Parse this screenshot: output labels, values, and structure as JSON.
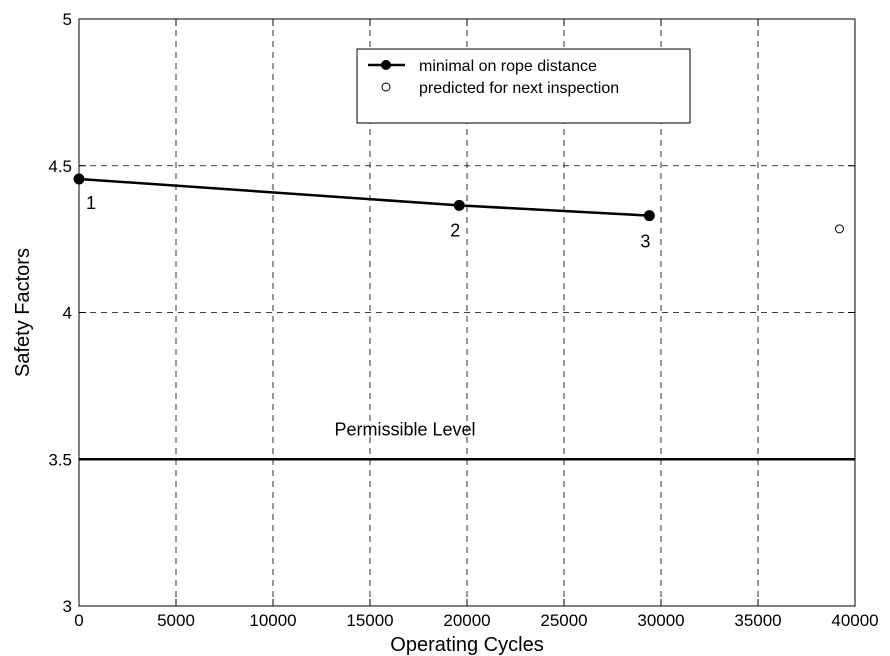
{
  "chart_data": {
    "type": "line",
    "xlabel": "Operating Cycles",
    "ylabel": "Safety Factors",
    "xlim": [
      0,
      40000
    ],
    "ylim": [
      3,
      5
    ],
    "x_ticks": [
      0,
      5000,
      10000,
      15000,
      20000,
      25000,
      30000,
      35000,
      40000
    ],
    "y_ticks": [
      3,
      3.5,
      4,
      4.5,
      5
    ],
    "x_tick_labels": [
      "0",
      "5000",
      "10000",
      "15000",
      "20000",
      "25000",
      "30000",
      "35000",
      "40000"
    ],
    "y_tick_labels": [
      "3",
      "3.5",
      "4",
      "4.5",
      "5"
    ],
    "grid": "dashed",
    "legend_position": "top-center",
    "series": [
      {
        "name": "minimal on rope distance",
        "marker": "filled-circle",
        "line": "solid",
        "x": [
          0,
          19600,
          29400
        ],
        "y": [
          4.455,
          4.365,
          4.33
        ],
        "point_labels": [
          "1",
          "2",
          "3"
        ]
      },
      {
        "name": "predicted for next inspection",
        "marker": "open-circle",
        "line": "none",
        "x": [
          39200
        ],
        "y": [
          4.285
        ]
      }
    ],
    "reference_line": {
      "y": 3.5,
      "label": "Permissible Level"
    }
  }
}
